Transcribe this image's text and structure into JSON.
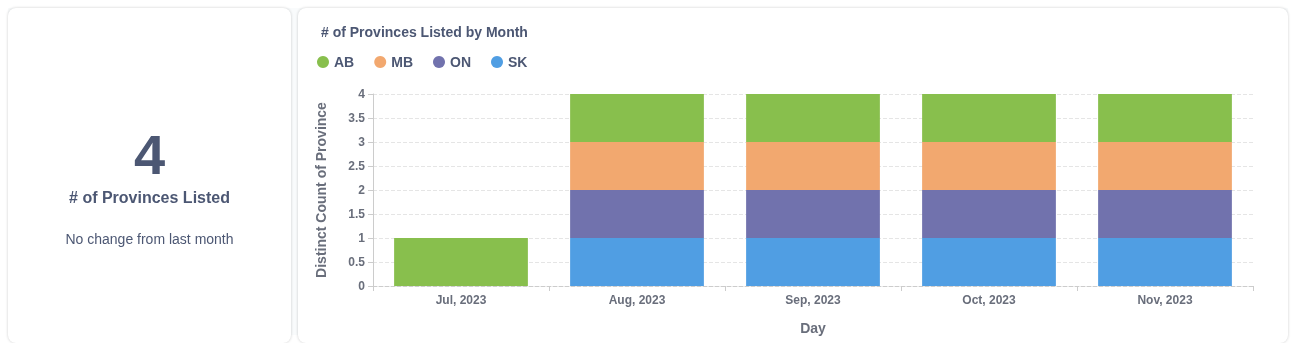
{
  "chart_data": [
    {
      "type": "other",
      "title": "# of Provinces Listed",
      "annotations": [
        "4",
        "No change from last month"
      ]
    },
    {
      "type": "bar",
      "title": "# of Provinces Listed by Month",
      "xlabel": "Day",
      "ylabel": "Distinct Count of Province",
      "stacked": true,
      "categories": [
        "Jul, 2023",
        "Aug, 2023",
        "Sep, 2023",
        "Oct, 2023",
        "Nov, 2023"
      ],
      "series": [
        {
          "name": "SK",
          "color": "#509ee3",
          "values": [
            null,
            1,
            1,
            1,
            1
          ]
        },
        {
          "name": "ON",
          "color": "#7172ad",
          "values": [
            null,
            1,
            1,
            1,
            1
          ]
        },
        {
          "name": "MB",
          "color": "#f2a86f",
          "values": [
            null,
            1,
            1,
            1,
            1
          ]
        },
        {
          "name": "AB",
          "color": "#88bf4d",
          "values": [
            1,
            1,
            1,
            1,
            1
          ]
        }
      ],
      "ylim": [
        0,
        4
      ],
      "yticks": [
        0,
        0.5,
        1,
        1.5,
        2,
        2.5,
        3,
        3.5,
        4
      ],
      "grid": "y",
      "legend": "top left"
    }
  ]
}
